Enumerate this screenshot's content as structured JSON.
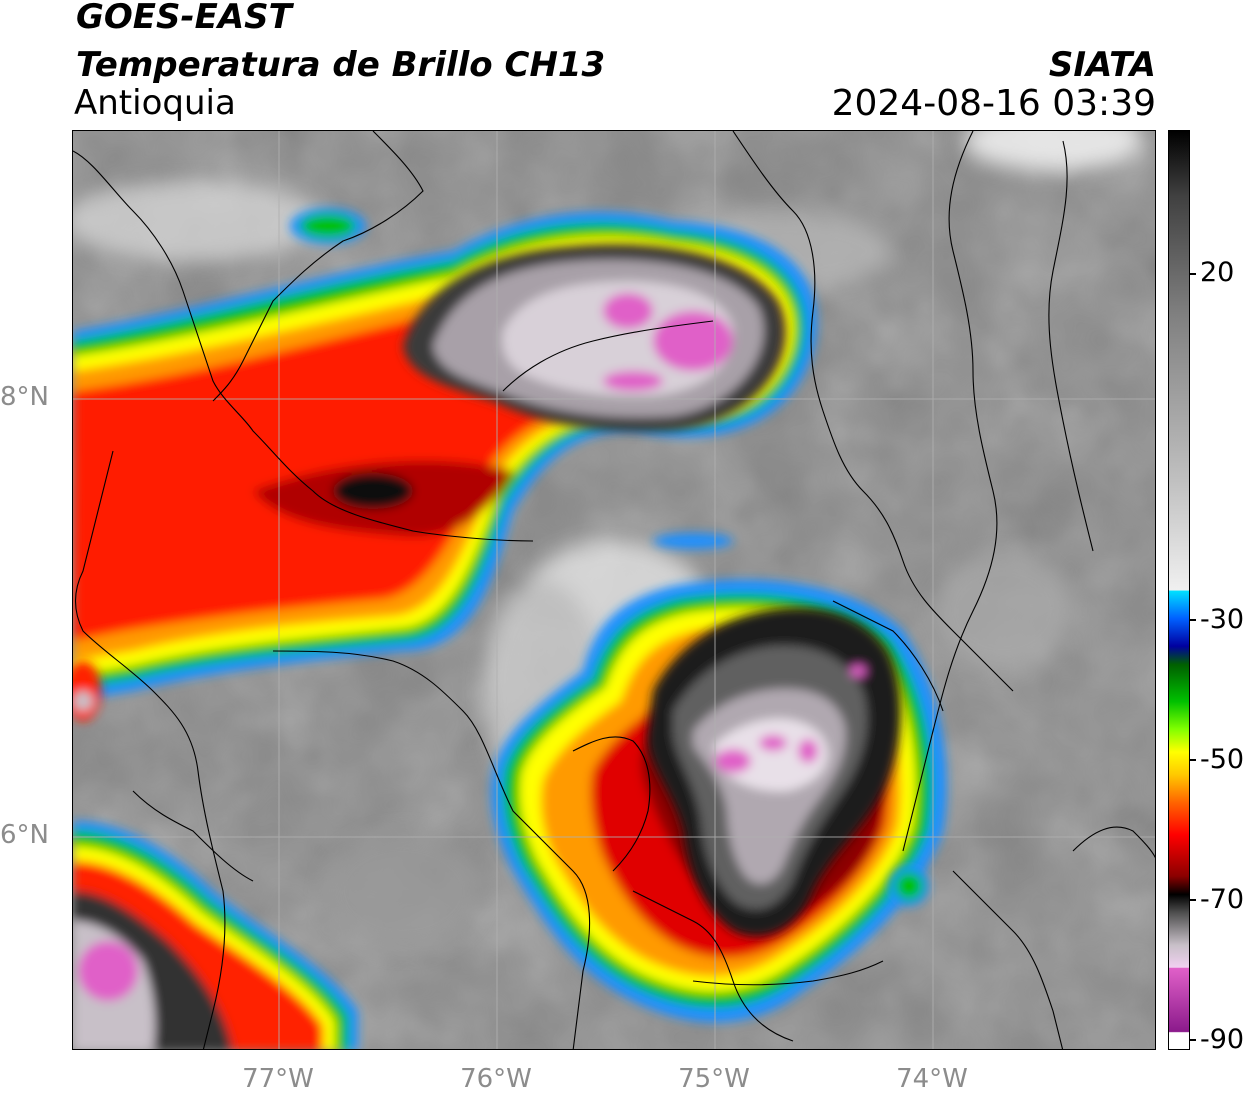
{
  "header": {
    "satellite": "GOES-EAST",
    "product": "Temperatura de Brillo CH13",
    "region": "Antioquia",
    "agency": "SIATA",
    "datetime": "2024-08-16 03:39"
  },
  "map": {
    "lat_range": [
      5.0,
      9.2
    ],
    "lon_range": [
      -77.95,
      -72.95
    ],
    "lat_ticks": [
      "8°N",
      "6°N"
    ],
    "lon_ticks": [
      "77°W",
      "76°W",
      "75°W",
      "74°W"
    ],
    "gridlines": true,
    "gridline_color": "#b0b0b0",
    "background_gray": "#8a8a8a",
    "border_color": "#000000"
  },
  "colorbar": {
    "range": [
      -90,
      40
    ],
    "tick_labels": [
      "20",
      "-30",
      "-50",
      "-70",
      "-90"
    ],
    "stops": [
      "#ffffff",
      "#8b1a8b",
      "#e060c8",
      "#f0d0f0",
      "#c8c0c8",
      "#505050",
      "#000000",
      "#8b0000",
      "#ff0000",
      "#ff6400",
      "#ffc800",
      "#ffff00",
      "#80ff00",
      "#00c000",
      "#006000",
      "#0000a0",
      "#0060ff",
      "#00e0ff",
      "#f0f0f0",
      "#a0a0a0",
      "#404040",
      "#000000"
    ]
  }
}
